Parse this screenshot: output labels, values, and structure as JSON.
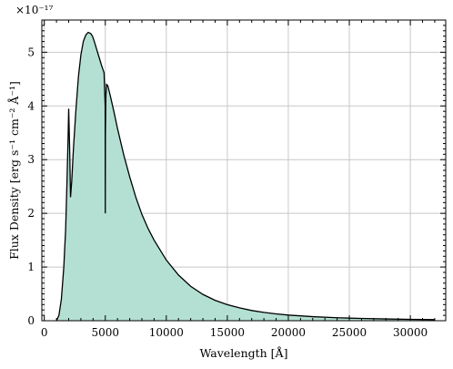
{
  "chart_data": {
    "type": "area",
    "title": "",
    "xlabel": "Wavelength [Å]",
    "ylabel": "Flux Density [erg s⁻¹ cm⁻² Å⁻¹]",
    "multiplier_label": "×10⁻¹⁷",
    "xlim": [
      -200,
      32900
    ],
    "ylim": [
      0,
      5.6
    ],
    "xticks": [
      0,
      5000,
      10000,
      15000,
      20000,
      25000,
      30000
    ],
    "yticks": [
      0,
      1,
      2,
      3,
      4,
      5
    ],
    "grid": true,
    "legend": "none",
    "fill_color": "#b3e0d3",
    "line_color": "#000000",
    "series": [
      {
        "x": [
          1000,
          1200,
          1400,
          1600,
          1750,
          1850,
          1950,
          2000,
          2080,
          2150,
          2250,
          2400,
          2600,
          2800,
          3000,
          3200,
          3400,
          3600,
          3800,
          3950,
          4100,
          4300,
          4500,
          4700,
          4900,
          4990,
          5000,
          5010,
          5050,
          5100,
          5200,
          5400,
          5700,
          6000,
          6500,
          7000,
          7500,
          8000,
          8500,
          9000,
          10000,
          11000,
          12000,
          13000,
          14000,
          15000,
          16000,
          17000,
          18000,
          19000,
          20000,
          22000,
          24000,
          26000,
          28000,
          30000,
          32000
        ],
        "y": [
          0,
          0.1,
          0.4,
          1.0,
          1.7,
          2.5,
          3.4,
          3.95,
          3.2,
          2.3,
          2.6,
          3.25,
          3.95,
          4.55,
          4.95,
          5.2,
          5.32,
          5.37,
          5.35,
          5.3,
          5.2,
          5.05,
          4.9,
          4.75,
          4.62,
          4.0,
          2.0,
          3.5,
          4.2,
          4.4,
          4.38,
          4.2,
          3.9,
          3.58,
          3.1,
          2.68,
          2.3,
          1.98,
          1.72,
          1.5,
          1.13,
          0.85,
          0.64,
          0.49,
          0.38,
          0.3,
          0.24,
          0.19,
          0.155,
          0.128,
          0.105,
          0.075,
          0.055,
          0.042,
          0.033,
          0.026,
          0.02
        ]
      }
    ]
  }
}
